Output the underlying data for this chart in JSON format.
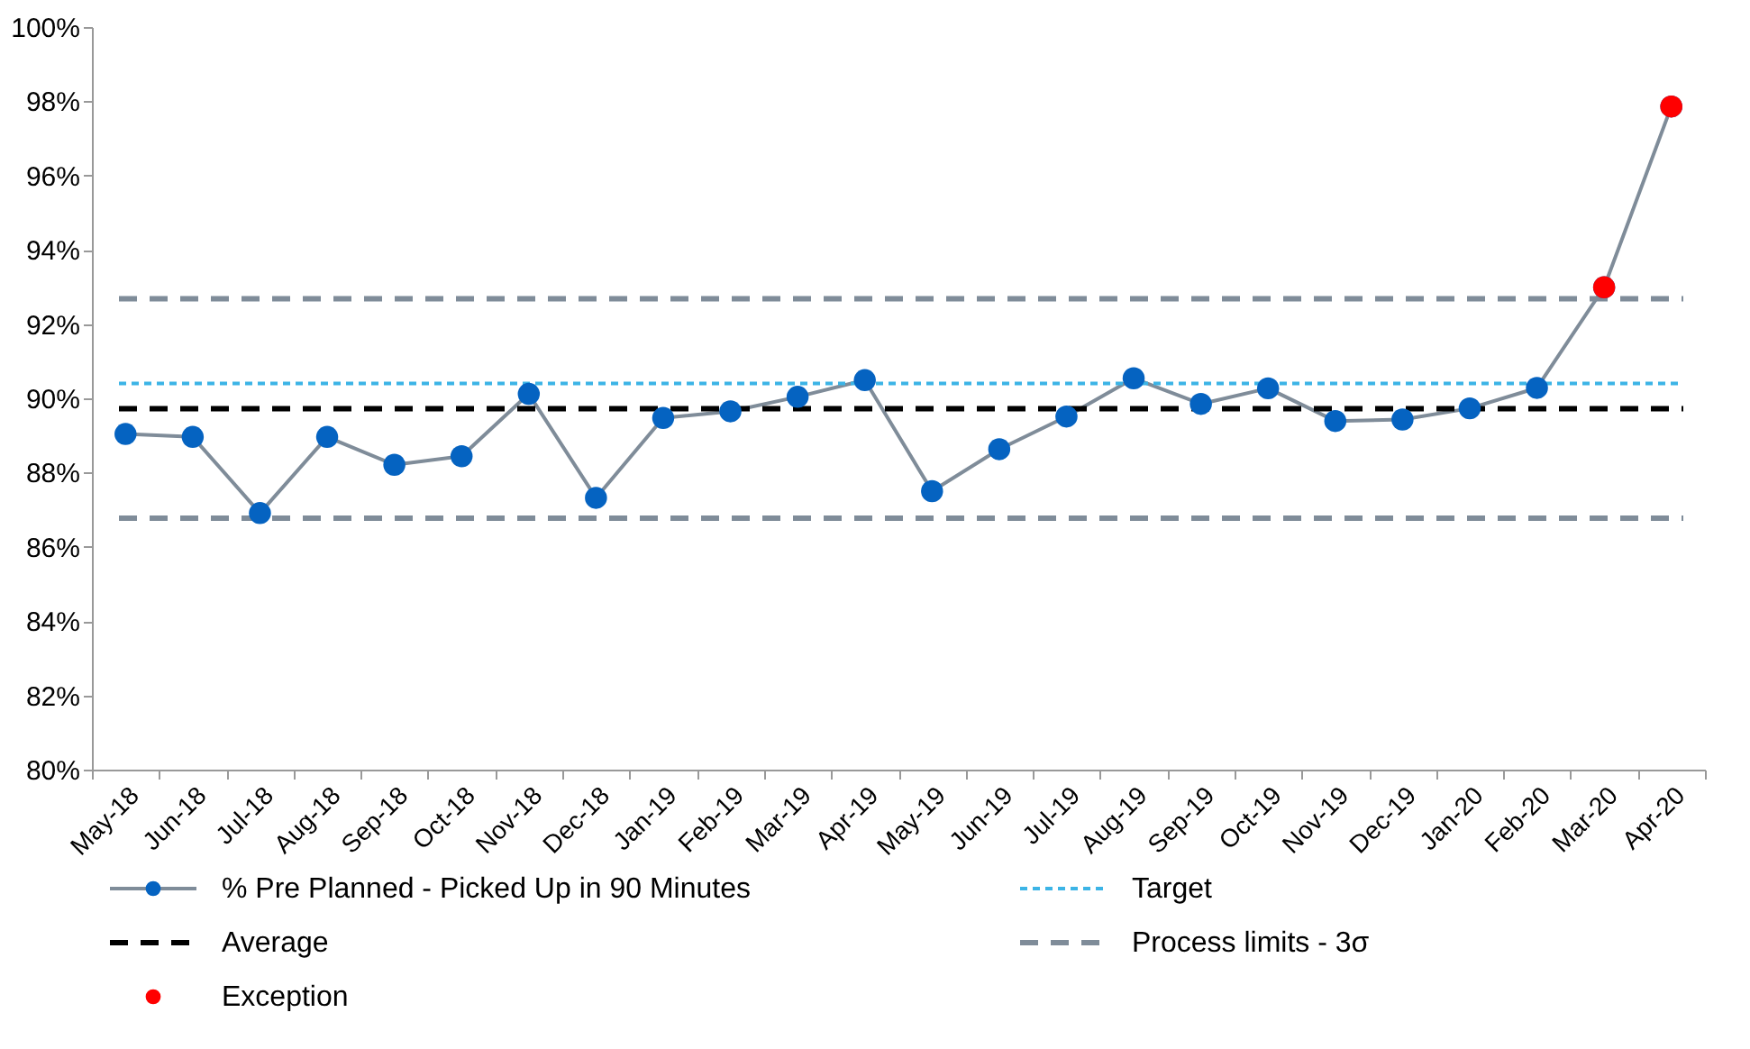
{
  "chart_data": {
    "type": "line",
    "categories": [
      "May-18",
      "Jun-18",
      "Jul-18",
      "Aug-18",
      "Sep-18",
      "Oct-18",
      "Nov-18",
      "Dec-18",
      "Jan-19",
      "Feb-19",
      "Mar-19",
      "Apr-19",
      "May-19",
      "Jun-19",
      "Jul-19",
      "Aug-19",
      "Sep-19",
      "Oct-19",
      "Nov-19",
      "Dec-19",
      "Jan-20",
      "Feb-20",
      "Mar-20",
      "Apr-20"
    ],
    "series": [
      {
        "name": "% Pre Planned - Picked Up in 90 Minutes",
        "color": "#0563c1",
        "values": [
          89.04,
          88.96,
          86.91,
          88.96,
          88.21,
          88.44,
          90.12,
          87.32,
          89.47,
          89.65,
          90.04,
          90.49,
          87.5,
          88.63,
          89.51,
          90.54,
          89.85,
          90.27,
          89.39,
          89.43,
          89.73,
          90.28,
          92.99,
          97.86
        ]
      },
      {
        "name": "Exception",
        "color": "#ff0000",
        "type": "scatter",
        "values": [
          null,
          null,
          null,
          null,
          null,
          null,
          null,
          null,
          null,
          null,
          null,
          null,
          null,
          null,
          null,
          null,
          null,
          null,
          null,
          null,
          null,
          null,
          92.99,
          97.86
        ]
      }
    ],
    "ref_lines": [
      {
        "axis": "y",
        "value": 90.4,
        "label": "Target",
        "color": "#3cb4e6",
        "line_style": "dotted"
      },
      {
        "axis": "y",
        "value": 89.72,
        "label": "Average",
        "color": "#000000",
        "line_style": "dashed"
      },
      {
        "axis": "y",
        "value": 92.68,
        "label": "Process limits - 3σ",
        "color": "#7f8c99",
        "line_style": "dashed"
      },
      {
        "axis": "y",
        "value": 86.77,
        "label": null,
        "color": "#7f8c99",
        "line_style": "dashed"
      }
    ],
    "ylim": [
      80,
      100
    ],
    "yticks": [
      {
        "value": 80,
        "label": "80%"
      },
      {
        "value": 82,
        "label": "82%"
      },
      {
        "value": 84,
        "label": "84%"
      },
      {
        "value": 86,
        "label": "86%"
      },
      {
        "value": 88,
        "label": "88%"
      },
      {
        "value": 90,
        "label": "90%"
      },
      {
        "value": 92,
        "label": "92%"
      },
      {
        "value": 94,
        "label": "94%"
      },
      {
        "value": 96,
        "label": "96%"
      },
      {
        "value": 98,
        "label": "98%"
      },
      {
        "value": 100,
        "label": "100%"
      }
    ],
    "grid": false,
    "marker": "circle",
    "legend": "bottom"
  }
}
